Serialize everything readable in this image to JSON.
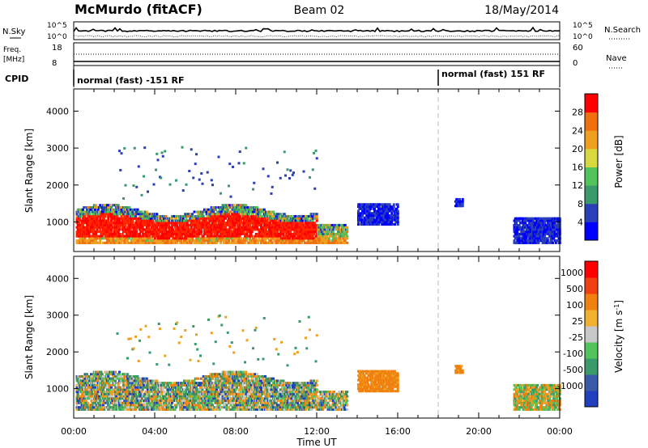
{
  "header": {
    "station": "McMurdo (fitACF)",
    "beam": "Beam 02",
    "date": "18/May/2014"
  },
  "panels": {
    "noise": {
      "left_label": "N.Sky",
      "left_ticks": [
        "10^5",
        "10^0"
      ],
      "right_ticks": [
        "10^5",
        "10^0"
      ],
      "right_label": "N.Search"
    },
    "freq": {
      "left_label_line1": "Freq.",
      "left_label_line2": "[MHz]",
      "left_ticks": [
        "18",
        "8"
      ],
      "right_ticks": [
        "60",
        "0"
      ],
      "right_label": "Nave"
    },
    "cpid": {
      "label": "CPID",
      "entries": [
        "normal (fast) -151 RF",
        "normal (fast) 151 RF"
      ]
    }
  },
  "chart_data": [
    {
      "type": "heatmap",
      "name": "power",
      "xlabel": "",
      "ylabel": "Slant Range [km]",
      "y_ticks": [
        "1000",
        "2000",
        "3000",
        "4000"
      ],
      "ylim": [
        200,
        4600
      ],
      "xlim": [
        0,
        24
      ],
      "colorbar": {
        "label": "Power [dB]",
        "ticks": [
          "4",
          "8",
          "12",
          "16",
          "20",
          "24",
          "28"
        ],
        "colors": [
          "#0000ff",
          "#2a3fb8",
          "#3a9a6a",
          "#52c45a",
          "#d8d840",
          "#f0a020",
          "#f07010",
          "#ff0000"
        ]
      },
      "cpid_change_hour": 18
    },
    {
      "type": "heatmap",
      "name": "velocity",
      "xlabel": "Time UT",
      "ylabel": "Slant Range [km]",
      "y_ticks": [
        "1000",
        "2000",
        "3000",
        "4000"
      ],
      "ylim": [
        200,
        4600
      ],
      "xlim": [
        0,
        24
      ],
      "x_ticks": [
        "00:00",
        "04:00",
        "08:00",
        "12:00",
        "16:00",
        "20:00",
        "00:00"
      ],
      "colorbar": {
        "label": "Velocity [m s",
        "label_sup": "-1",
        "label_end": "]",
        "ticks": [
          "1000",
          "500",
          "100",
          "25",
          "-25",
          "-100",
          "-500",
          "-1000"
        ],
        "colors": [
          "#2040c0",
          "#3a5aa8",
          "#3a9a6a",
          "#52c45a",
          "#c8c8c8",
          "#f0b030",
          "#f08010",
          "#f04010",
          "#ff0000"
        ]
      },
      "cpid_change_hour": 18
    }
  ]
}
